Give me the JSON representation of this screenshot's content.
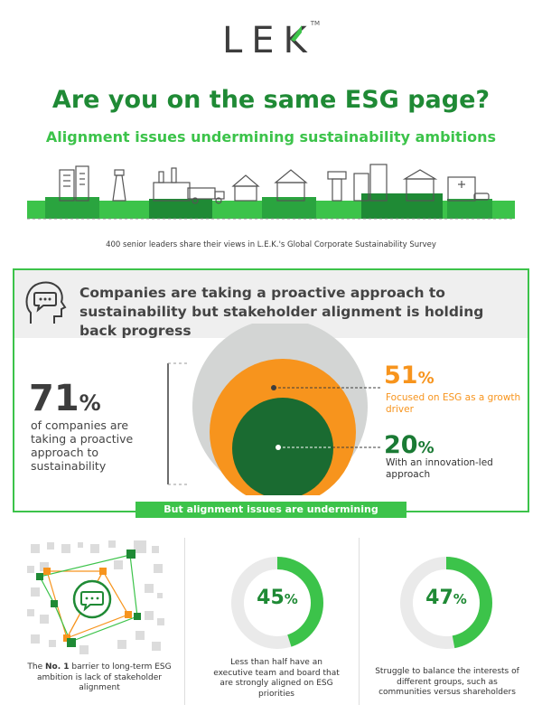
{
  "logo": {
    "text_le": "LE",
    "text_k": "K",
    "tm": "TM"
  },
  "header": {
    "title": "Are you on the same ESG page?",
    "subtitle": "Alignment issues undermining sustainability ambitions"
  },
  "survey_text": "400 senior leaders share their views in L.E.K.'s Global Corporate Sustainability Survey",
  "section1": {
    "headline": "Companies are taking a proactive approach to sustainability but stakeholder alignment is holding back progress",
    "stat_71": {
      "value": "71",
      "unit": "%",
      "desc": "of companies are taking a proactive approach to sustainability"
    },
    "stat_51": {
      "value": "51",
      "unit": "%",
      "desc": "Focused on ESG as a growth driver"
    },
    "stat_20": {
      "value": "20",
      "unit": "%",
      "desc": "With an innovation-led approach"
    }
  },
  "banner": "But alignment issues are undermining ambitions:",
  "section2": {
    "col1": {
      "caption_pre": "The ",
      "caption_bold": "No. 1",
      "caption_post": " barrier to long-term ESG ambition is lack of stakeholder alignment"
    },
    "col2": {
      "value": "45",
      "unit": "%",
      "fraction": 0.45,
      "caption": "Less than half have an executive team and board that are strongly aligned on ESG priorities"
    },
    "col3": {
      "value": "47",
      "unit": "%",
      "fraction": 0.47,
      "caption": "Struggle to balance the interests of different groups, such as communities versus shareholders"
    }
  },
  "colors": {
    "dark_green": "#1f8a35",
    "bright_green": "#3cc34a",
    "deep_green": "#1a6b31",
    "orange": "#f7941d",
    "grey_circle": "#d6d6d6",
    "text_dark": "#3d3d3d"
  },
  "icons": [
    "speech-head-icon",
    "city-skyline-illustration",
    "chat-bubble-icon",
    "network-grid-illustration"
  ]
}
